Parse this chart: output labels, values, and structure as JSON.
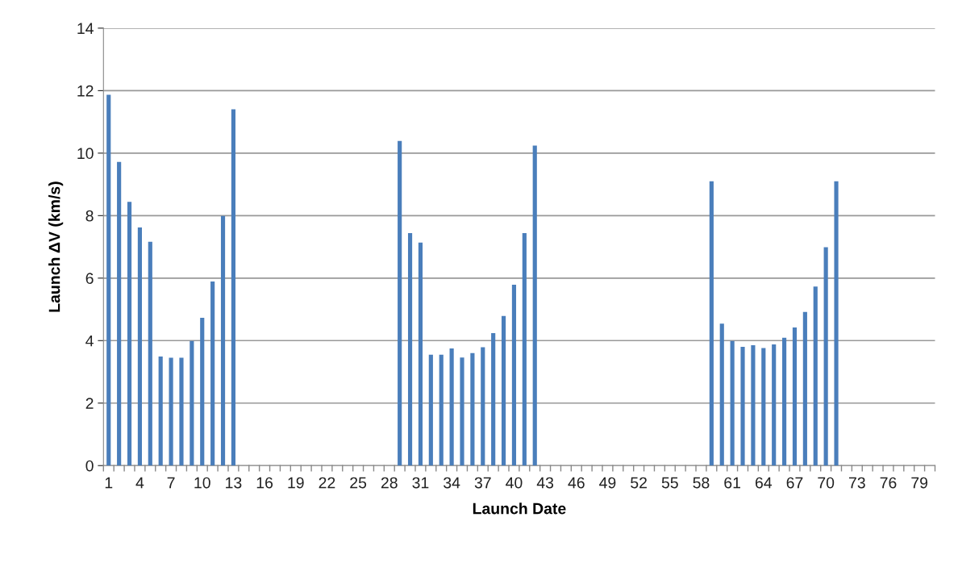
{
  "chart_data": {
    "type": "bar",
    "xlabel": "Launch Date",
    "ylabel": "Launch ΔV (km/s)",
    "categories": [
      "1",
      null,
      null,
      "4",
      null,
      null,
      "7",
      null,
      null,
      "10",
      null,
      null,
      "13",
      null,
      null,
      "16",
      null,
      null,
      "19",
      null,
      null,
      "22",
      null,
      null,
      "25",
      null,
      null,
      "28",
      null,
      null,
      "31",
      null,
      null,
      "34",
      null,
      null,
      "37",
      null,
      null,
      "40",
      null,
      null,
      "43",
      null,
      null,
      "46",
      null,
      null,
      "49",
      null,
      null,
      "52",
      null,
      null,
      "55",
      null,
      null,
      "58",
      null,
      null,
      "61",
      null,
      null,
      "64",
      null,
      null,
      "67",
      null,
      null,
      "70",
      null,
      null,
      "73",
      null,
      null,
      "76",
      null,
      null,
      "79",
      null
    ],
    "values": [
      11.87,
      9.72,
      8.44,
      7.62,
      7.16,
      3.49,
      3.45,
      3.45,
      3.99,
      4.73,
      5.89,
      7.99,
      11.4,
      null,
      null,
      null,
      null,
      null,
      null,
      null,
      null,
      null,
      null,
      null,
      null,
      null,
      null,
      null,
      10.39,
      7.44,
      7.14,
      3.55,
      3.55,
      3.75,
      3.46,
      3.6,
      3.79,
      4.24,
      4.79,
      5.79,
      7.44,
      10.24,
      null,
      null,
      null,
      null,
      null,
      null,
      null,
      null,
      null,
      null,
      null,
      null,
      null,
      null,
      null,
      null,
      9.1,
      4.54,
      3.99,
      3.8,
      3.85,
      3.76,
      3.88,
      4.09,
      4.42,
      4.92,
      5.73,
      6.99,
      9.1,
      null,
      null,
      null,
      null,
      null,
      null,
      null,
      null,
      null
    ],
    "color": "#4a7ebb",
    "ylim": [
      0,
      14
    ],
    "yticks": [
      0,
      2,
      4,
      6,
      8,
      10,
      12,
      14
    ],
    "grid": "y",
    "legend": false
  }
}
